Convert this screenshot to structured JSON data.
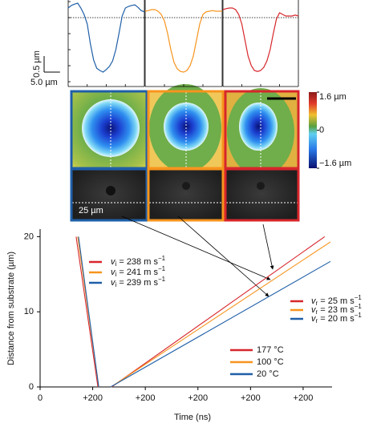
{
  "profiles": {
    "xlim": [
      0,
      24
    ],
    "ylim": [
      -2.15,
      0.55
    ],
    "x": [
      0,
      1,
      2,
      3,
      4,
      5,
      6,
      7,
      8,
      9,
      10,
      11,
      12,
      13,
      14,
      15,
      16,
      17,
      18,
      19,
      20,
      21,
      22,
      23,
      24
    ],
    "series": [
      {
        "color": "#1f5fa8",
        "values": [
          0.3,
          0.38,
          0.42,
          0.45,
          0.3,
          0.1,
          -0.2,
          -0.82,
          -1.32,
          -1.58,
          -1.65,
          -1.7,
          -1.62,
          -1.52,
          -1.35,
          -1.0,
          -0.5,
          0.05,
          0.3,
          0.35,
          0.38,
          0.4,
          0.32,
          0.22,
          0.18
        ]
      },
      {
        "color": "#f7941d",
        "values": [
          0.2,
          0.22,
          0.25,
          0.25,
          0.2,
          0.1,
          -0.1,
          -0.5,
          -1.0,
          -1.4,
          -1.6,
          -1.68,
          -1.7,
          -1.65,
          -1.5,
          -1.2,
          -0.7,
          -0.2,
          0.1,
          0.18,
          0.2,
          0.22,
          0.2,
          0.2,
          0.2
        ]
      },
      {
        "color": "#d7262b",
        "values": [
          0.25,
          0.28,
          0.3,
          0.3,
          0.25,
          0.1,
          -0.2,
          -0.7,
          -1.2,
          -1.5,
          -1.65,
          -1.68,
          -1.65,
          -1.55,
          -1.35,
          -1.0,
          -0.5,
          -0.05,
          0.15,
          0.1,
          0.05,
          0.05,
          0.05,
          0.08,
          0.05
        ]
      }
    ],
    "scale_y": 0.5,
    "scale_y_label": "0.5 µm",
    "scale_x": 5.0,
    "scale_x_label": "5.0 µm"
  },
  "images": {
    "scale_label": "25 µm",
    "colorbar": {
      "lim": [
        -1.6,
        1.6
      ],
      "ticks": [
        {
          "value": 1.6,
          "label": "1.6 µm"
        },
        0,
        {
          "value": -1.6,
          "label": "−1.6 µm"
        }
      ]
    }
  },
  "chart_data": {
    "type": "line",
    "xlabel": "Time (ns)",
    "ylabel": "Distance from substrate (µm)",
    "xlim": [
      0,
      1110
    ],
    "ylim": [
      0,
      21
    ],
    "xticks": [
      0,
      {
        "value": 200,
        "label": "+200"
      },
      {
        "value": 400,
        "label": "+200"
      },
      {
        "value": 600,
        "label": "+200"
      },
      {
        "value": 800,
        "label": "+200"
      },
      {
        "value": 1000,
        "label": "+200"
      }
    ],
    "yticks": [
      0,
      10,
      20
    ],
    "series": [
      {
        "name": "177 °C",
        "color": "#d7262b",
        "x": [
          137,
          220,
          null,
          272,
          1082
        ],
        "values": [
          20,
          0,
          null,
          0,
          20
        ]
      },
      {
        "name": "100 °C",
        "color": "#f7941d",
        "x": [
          143,
          223,
          null,
          270,
          1104
        ],
        "values": [
          20,
          0,
          null,
          0,
          19.3
        ]
      },
      {
        "name": "20 °C",
        "color": "#1f5fa8",
        "x": [
          146,
          223,
          null,
          268,
          1104
        ],
        "values": [
          20,
          0,
          null,
          0,
          16.7
        ]
      }
    ],
    "impact_legend": [
      {
        "color": "#d7262b",
        "symbol": "v",
        "sub": "i",
        "text": " = 238 m s",
        "sup": "−1"
      },
      {
        "color": "#f7941d",
        "symbol": "v",
        "sub": "i",
        "text": " = 241 m s",
        "sup": "−1"
      },
      {
        "color": "#1f5fa8",
        "symbol": "v",
        "sub": "i",
        "text": " = 239 m s",
        "sup": "−1"
      }
    ],
    "rebound_legend": [
      {
        "color": "#d7262b",
        "symbol": "v",
        "sub": "r",
        "text": " = 25 m s",
        "sup": "−1"
      },
      {
        "color": "#f7941d",
        "symbol": "v",
        "sub": "r",
        "text": " = 23 m s",
        "sup": "−1"
      },
      {
        "color": "#1f5fa8",
        "symbol": "v",
        "sub": "r",
        "text": " = 20 m s",
        "sup": "−1"
      }
    ]
  }
}
